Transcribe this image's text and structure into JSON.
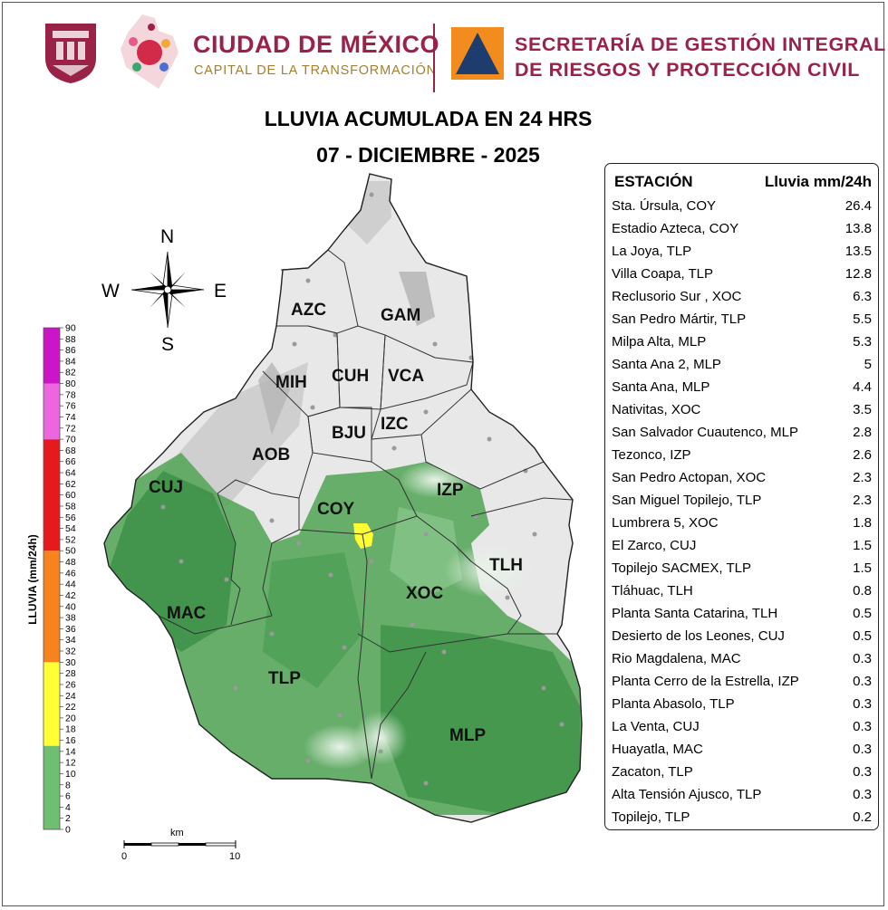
{
  "header": {
    "city_name": "CIUDAD DE MÉXICO",
    "city_slogan": "CAPITAL DE LA TRANSFORMACIÓN",
    "agency_line1": "SECRETARÍA DE GESTIÓN INTEGRAL",
    "agency_line2": "DE RIESGOS Y PROTECCIÓN CIVIL"
  },
  "title": {
    "line1": "LLUVIA ACUMULADA EN 24 HRS",
    "line2": "07 - DICIEMBRE - 2025"
  },
  "compass": {
    "n": "N",
    "s": "S",
    "e": "E",
    "w": "W"
  },
  "scale_bar": {
    "unit": "km",
    "start": "0",
    "end": "10"
  },
  "legend": {
    "title": "LLUVIA (mm/24h)",
    "ticks": [
      "0",
      "2",
      "4",
      "6",
      "8",
      "10",
      "12",
      "14",
      "16",
      "18",
      "20",
      "22",
      "24",
      "26",
      "28",
      "30",
      "32",
      "34",
      "36",
      "38",
      "40",
      "42",
      "44",
      "46",
      "48",
      "50",
      "52",
      "54",
      "56",
      "58",
      "60",
      "62",
      "64",
      "66",
      "68",
      "70",
      "72",
      "74",
      "76",
      "78",
      "80",
      "82",
      "84",
      "86",
      "88",
      "90"
    ],
    "bands": [
      {
        "from": 0,
        "to": 15,
        "color": "#6fbf73"
      },
      {
        "from": 15,
        "to": 30,
        "color": "#ffff33"
      },
      {
        "from": 30,
        "to": 50,
        "color": "#f7831e"
      },
      {
        "from": 50,
        "to": 70,
        "color": "#e61a1a"
      },
      {
        "from": 70,
        "to": 80,
        "color": "#ee66dd"
      },
      {
        "from": 80,
        "to": 90,
        "color": "#cc14c8"
      }
    ]
  },
  "municipalities": [
    {
      "code": "AZC"
    },
    {
      "code": "GAM"
    },
    {
      "code": "MIH"
    },
    {
      "code": "CUH"
    },
    {
      "code": "VCA"
    },
    {
      "code": "BJU"
    },
    {
      "code": "IZC"
    },
    {
      "code": "AOB"
    },
    {
      "code": "CUJ"
    },
    {
      "code": "COY"
    },
    {
      "code": "IZP"
    },
    {
      "code": "TLH"
    },
    {
      "code": "XOC"
    },
    {
      "code": "MAC"
    },
    {
      "code": "TLP"
    },
    {
      "code": "MLP"
    }
  ],
  "colors": {
    "brand": "#9b2247",
    "gold": "#a57f2c",
    "pc_orange": "#f28c1f",
    "pc_navy": "#1e3c6e"
  },
  "table": {
    "header_station": "ESTACIÓN",
    "header_value": "Lluvia mm/24h",
    "rows": [
      {
        "station": "Sta. Úrsula, COY",
        "value": "26.4"
      },
      {
        "station": "Estadio Azteca, COY",
        "value": "13.8"
      },
      {
        "station": "La Joya, TLP",
        "value": "13.5"
      },
      {
        "station": "Villa Coapa, TLP",
        "value": "12.8"
      },
      {
        "station": "Reclusorio Sur , XOC",
        "value": "6.3"
      },
      {
        "station": "San Pedro Mártir, TLP",
        "value": "5.5"
      },
      {
        "station": "Milpa Alta, MLP",
        "value": "5.3"
      },
      {
        "station": "Santa Ana 2, MLP",
        "value": "5"
      },
      {
        "station": "Santa Ana, MLP",
        "value": "4.4"
      },
      {
        "station": "Nativitas, XOC",
        "value": "3.5"
      },
      {
        "station": "San Salvador Cuautenco, MLP",
        "value": "2.8"
      },
      {
        "station": "Tezonco, IZP",
        "value": "2.6"
      },
      {
        "station": "San Pedro Actopan, XOC",
        "value": "2.3"
      },
      {
        "station": "San Miguel Topilejo, TLP",
        "value": "2.3"
      },
      {
        "station": "Lumbrera 5, XOC",
        "value": "1.8"
      },
      {
        "station": "El Zarco, CUJ",
        "value": "1.5"
      },
      {
        "station": "Topilejo SACMEX, TLP",
        "value": "1.5"
      },
      {
        "station": "Tláhuac, TLH",
        "value": "0.8"
      },
      {
        "station": "Planta Santa Catarina, TLH",
        "value": "0.5"
      },
      {
        "station": "Desierto de los Leones, CUJ",
        "value": "0.5"
      },
      {
        "station": "Rio Magdalena, MAC",
        "value": "0.3"
      },
      {
        "station": "Planta Cerro de la Estrella, IZP",
        "value": "0.3"
      },
      {
        "station": "Planta Abasolo, TLP",
        "value": "0.3"
      },
      {
        "station": "La Venta, CUJ",
        "value": "0.3"
      },
      {
        "station": "Huayatla, MAC",
        "value": "0.3"
      },
      {
        "station": "Zacaton, TLP",
        "value": "0.3"
      },
      {
        "station": "Alta Tensión Ajusco, TLP",
        "value": "0.3"
      },
      {
        "station": "Topilejo, TLP",
        "value": "0.2"
      }
    ]
  }
}
